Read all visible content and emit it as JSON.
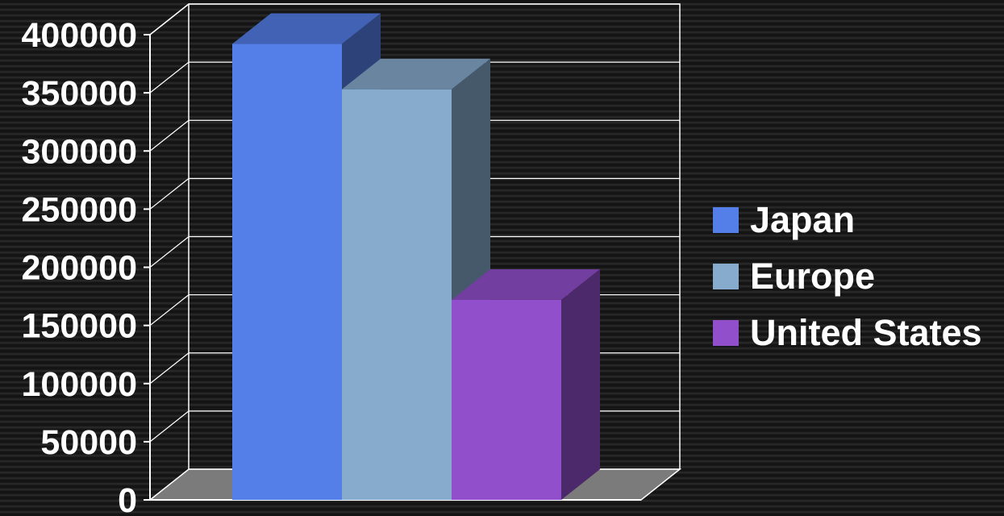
{
  "chart_data": {
    "type": "bar",
    "style": "3d-column",
    "title": "",
    "xlabel": "",
    "ylabel": "",
    "ylim": [
      0,
      400000
    ],
    "yticks": [
      "0",
      "50000",
      "100000",
      "150000",
      "200000",
      "250000",
      "300000",
      "350000",
      "400000"
    ],
    "grid": true,
    "legend_position": "right",
    "series": [
      {
        "name": "Japan",
        "value": 392000,
        "color": "#557fe8"
      },
      {
        "name": "Europe",
        "value": 353000,
        "color": "#86abcd"
      },
      {
        "name": "United States",
        "value": 172000,
        "color": "#924fcc"
      }
    ]
  }
}
